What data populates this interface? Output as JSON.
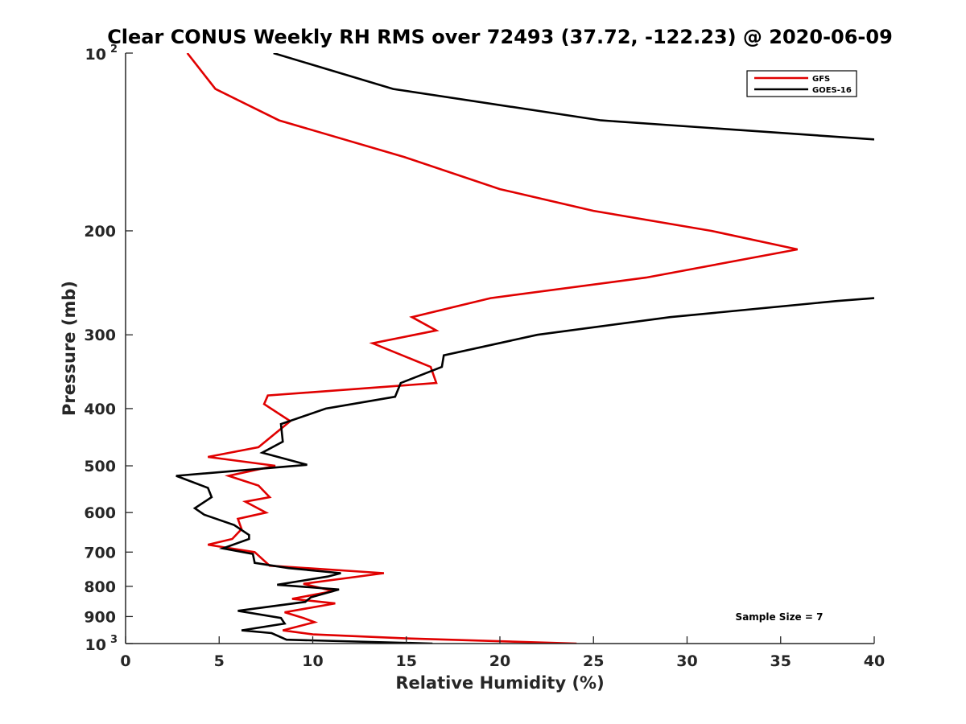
{
  "chart_data": {
    "type": "line",
    "title": "Clear CONUS Weekly RH RMS over 72493 (37.72, -122.23) @ 2020-06-09",
    "xlabel": "Relative Humidity (%)",
    "ylabel": "Pressure (mb)",
    "xlim": [
      0,
      40
    ],
    "ylim": [
      100,
      1000
    ],
    "y_scale": "log",
    "y_reversed": true,
    "x_ticks": [
      "0",
      "5",
      "10",
      "15",
      "20",
      "25",
      "30",
      "35",
      "40"
    ],
    "y_ticks": [
      {
        "value": 100,
        "base": "10",
        "exp": "2"
      },
      {
        "value": 200,
        "label": "200"
      },
      {
        "value": 300,
        "label": "300"
      },
      {
        "value": 400,
        "label": "400"
      },
      {
        "value": 500,
        "label": "500"
      },
      {
        "value": 600,
        "label": "600"
      },
      {
        "value": 700,
        "label": "700"
      },
      {
        "value": 800,
        "label": "800"
      },
      {
        "value": 900,
        "label": "900"
      },
      {
        "value": 1000,
        "base": "10",
        "exp": "3"
      }
    ],
    "grid": false,
    "legend_position": "top-right",
    "annotation": "Sample Size = 7",
    "series": [
      {
        "name": "GFS",
        "color": "#e00000",
        "points": [
          [
            3.3,
            100
          ],
          [
            4.8,
            115
          ],
          [
            8.2,
            130
          ],
          [
            14.9,
            150
          ],
          [
            20.0,
            170
          ],
          [
            25.0,
            185
          ],
          [
            31.3,
            200
          ],
          [
            35.9,
            215
          ],
          [
            27.8,
            240
          ],
          [
            19.5,
            260
          ],
          [
            15.3,
            280
          ],
          [
            16.6,
            295
          ],
          [
            13.2,
            310
          ],
          [
            16.3,
            340
          ],
          [
            16.6,
            362
          ],
          [
            7.6,
            380
          ],
          [
            7.4,
            393
          ],
          [
            8.8,
            420
          ],
          [
            7.1,
            465
          ],
          [
            4.4,
            483
          ],
          [
            8.0,
            500
          ],
          [
            5.5,
            520
          ],
          [
            7.1,
            540
          ],
          [
            7.7,
            565
          ],
          [
            6.4,
            575
          ],
          [
            7.5,
            600
          ],
          [
            6.0,
            615
          ],
          [
            6.2,
            640
          ],
          [
            5.7,
            665
          ],
          [
            4.4,
            680
          ],
          [
            6.9,
            700
          ],
          [
            7.7,
            738
          ],
          [
            13.8,
            760
          ],
          [
            9.5,
            792
          ],
          [
            11.1,
            815
          ],
          [
            8.9,
            840
          ],
          [
            11.2,
            855
          ],
          [
            8.5,
            885
          ],
          [
            9.5,
            905
          ],
          [
            10.1,
            920
          ],
          [
            8.4,
            950
          ],
          [
            10.0,
            965
          ],
          [
            15.0,
            980
          ],
          [
            24.1,
            1000
          ]
        ]
      },
      {
        "name": "GOES-16",
        "color": "#000000",
        "points": [
          [
            7.9,
            100
          ],
          [
            14.3,
            115
          ],
          [
            25.4,
            130
          ],
          [
            40.0,
            140
          ]
        ],
        "points_lower": [
          [
            40.0,
            260
          ],
          [
            38.0,
            263
          ],
          [
            29.1,
            280
          ],
          [
            22.0,
            300
          ],
          [
            17.0,
            325
          ],
          [
            16.9,
            340
          ],
          [
            14.7,
            362
          ],
          [
            14.4,
            382
          ],
          [
            10.7,
            400
          ],
          [
            8.3,
            425
          ],
          [
            8.4,
            455
          ],
          [
            7.3,
            475
          ],
          [
            9.7,
            498
          ],
          [
            2.7,
            520
          ],
          [
            4.4,
            545
          ],
          [
            4.6,
            565
          ],
          [
            3.7,
            590
          ],
          [
            4.2,
            605
          ],
          [
            5.8,
            630
          ],
          [
            6.6,
            655
          ],
          [
            6.6,
            665
          ],
          [
            5.2,
            690
          ],
          [
            6.8,
            705
          ],
          [
            6.9,
            730
          ],
          [
            8.7,
            745
          ],
          [
            11.5,
            760
          ],
          [
            10.8,
            770
          ],
          [
            8.1,
            795
          ],
          [
            11.4,
            810
          ],
          [
            9.9,
            835
          ],
          [
            9.6,
            850
          ],
          [
            6.0,
            880
          ],
          [
            8.3,
            905
          ],
          [
            8.5,
            925
          ],
          [
            6.2,
            950
          ],
          [
            7.8,
            960
          ],
          [
            8.6,
            985
          ],
          [
            16.4,
            1000
          ]
        ]
      }
    ]
  }
}
